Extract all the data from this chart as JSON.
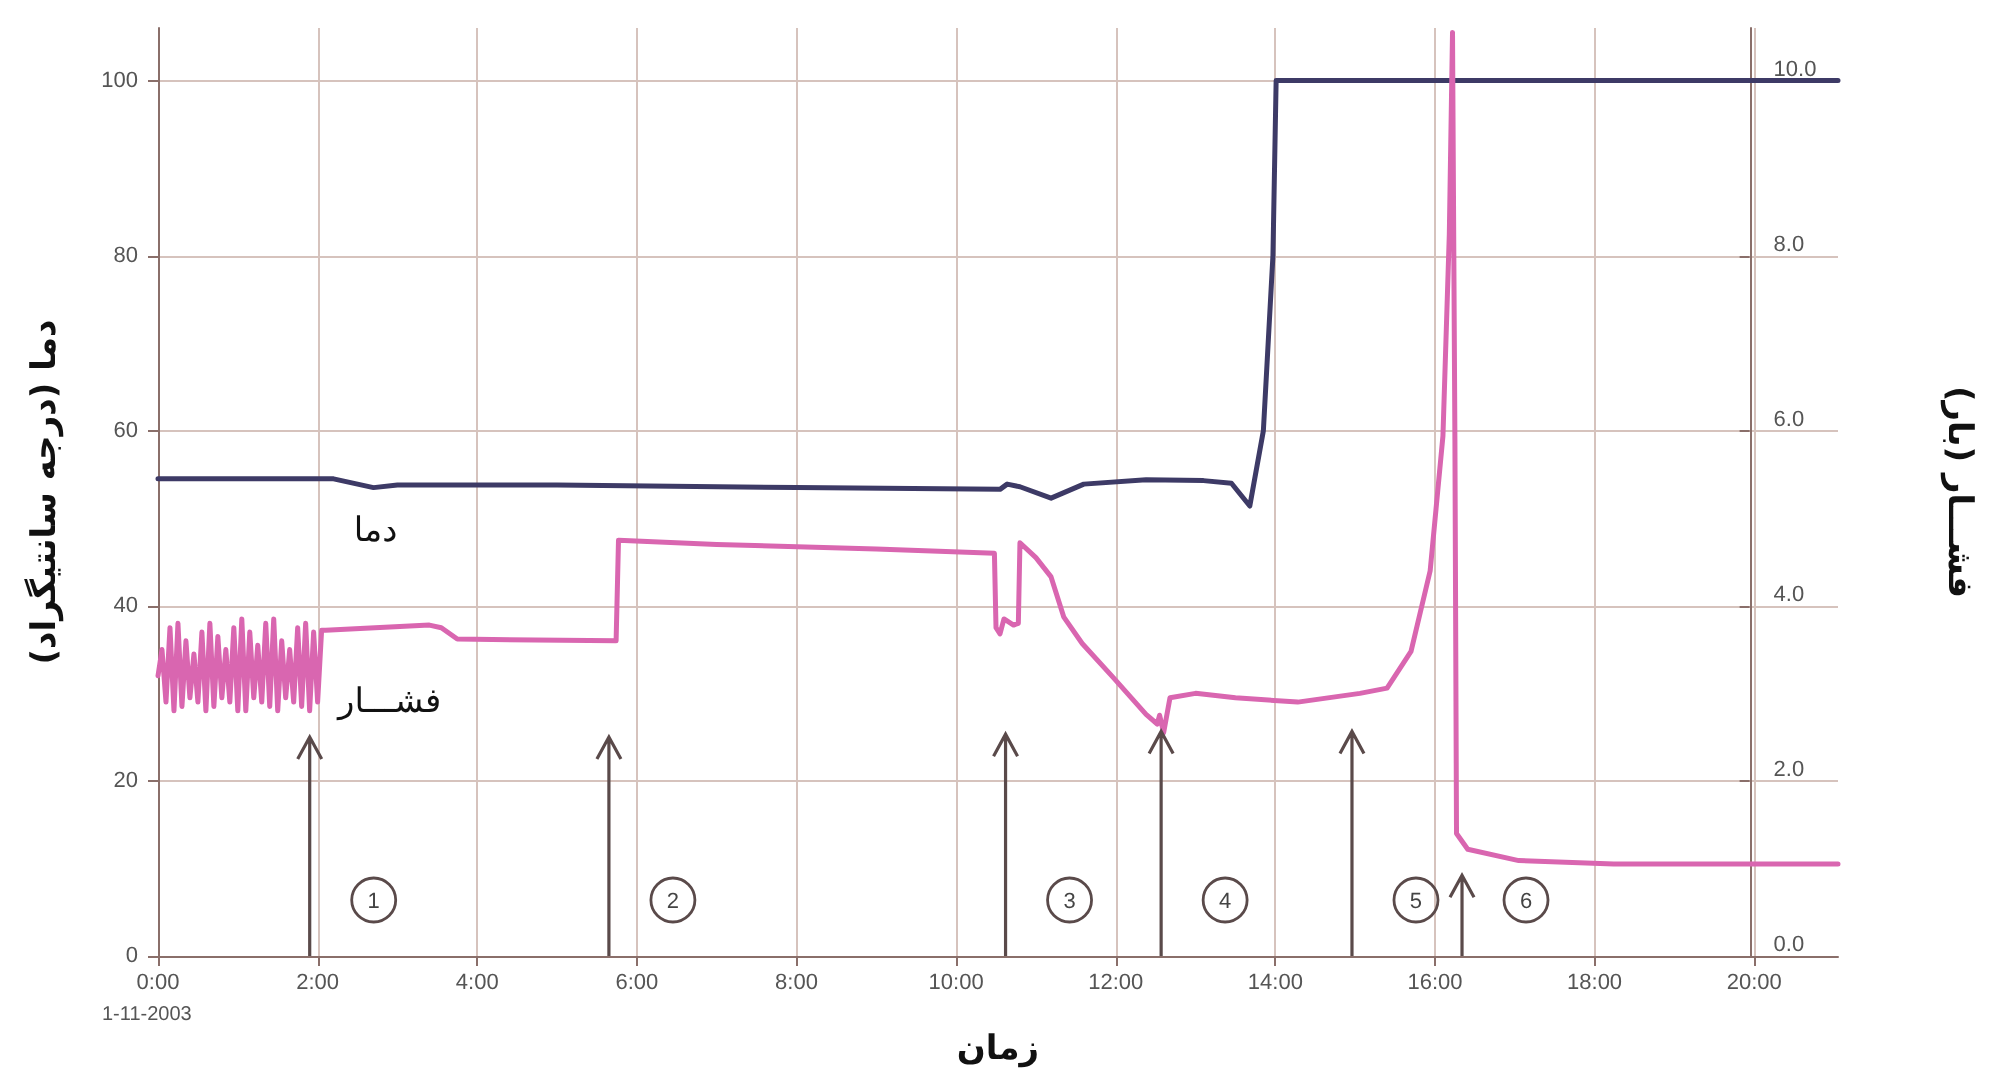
{
  "chart_data": {
    "type": "line",
    "xlabel": "زمان",
    "ylabel": "دما (درجه سانتیگراد)",
    "y2label": "فشـــار (بار)",
    "xlim": [
      0,
      21.05
    ],
    "xticks": [
      {
        "value": 0,
        "label": "0:00"
      },
      {
        "value": 2,
        "label": "2:00"
      },
      {
        "value": 4,
        "label": "4:00"
      },
      {
        "value": 6,
        "label": "6:00"
      },
      {
        "value": 8,
        "label": "8:00"
      },
      {
        "value": 10,
        "label": "10:00"
      },
      {
        "value": 12,
        "label": "12:00"
      },
      {
        "value": 14,
        "label": "14:00"
      },
      {
        "value": 16,
        "label": "16:00"
      },
      {
        "value": 18,
        "label": "18:00"
      },
      {
        "value": 20,
        "label": "20:00"
      }
    ],
    "ylim": [
      0,
      106
    ],
    "yticks": [
      0,
      20,
      40,
      60,
      80,
      100
    ],
    "y2lim": [
      0,
      10.6
    ],
    "y2ticks": [
      {
        "value": 0,
        "label": "0.0"
      },
      {
        "value": 2,
        "label": "2.0"
      },
      {
        "value": 4,
        "label": "4.0"
      },
      {
        "value": 6,
        "label": "6.0"
      },
      {
        "value": 8,
        "label": "8.0"
      },
      {
        "value": 10,
        "label": "10.0"
      }
    ],
    "grid": true,
    "marker": "none",
    "line_style": "solid",
    "legend": false,
    "series": [
      {
        "name": "دما",
        "color": "#3d3a66",
        "x": [
          0,
          2.2,
          2.7,
          3.0,
          5,
          8,
          10.55,
          10.64,
          10.8,
          11.19,
          11.6,
          12.38,
          13.1,
          13.45,
          13.68,
          13.85,
          13.97,
          14.01,
          21.05
        ],
        "values": [
          54.5,
          54.5,
          53.5,
          53.8,
          53.8,
          53.5,
          53.3,
          53.9,
          53.6,
          52.3,
          53.9,
          54.4,
          54.3,
          54.0,
          51.4,
          60,
          80,
          100,
          100
        ]
      },
      {
        "name": "فشـــار",
        "color": "#d966b0",
        "axis": "y2",
        "x": [
          0,
          0.05,
          0.1,
          0.15,
          0.2,
          0.25,
          0.3,
          0.35,
          0.4,
          0.45,
          0.5,
          0.55,
          0.6,
          0.65,
          0.7,
          0.75,
          0.8,
          0.85,
          0.9,
          0.95,
          1.0,
          1.05,
          1.1,
          1.15,
          1.2,
          1.25,
          1.3,
          1.35,
          1.4,
          1.45,
          1.5,
          1.55,
          1.6,
          1.65,
          1.7,
          1.75,
          1.8,
          1.85,
          1.9,
          1.95,
          2.0,
          2.05,
          2.1,
          3.4,
          3.55,
          3.75,
          5.74,
          5.77,
          7,
          9,
          10.48,
          10.5,
          10.55,
          10.6,
          10.72,
          10.78,
          10.8,
          11.0,
          11.19,
          11.35,
          11.58,
          11.97,
          12.38,
          12.52,
          12.55,
          12.6,
          12.68,
          13.0,
          13.5,
          14.28,
          15.06,
          15.4,
          15.7,
          15.94,
          16.1,
          16.18,
          16.22,
          16.25,
          16.27,
          16.41,
          17.05,
          18.24,
          21.05
        ],
        "values": [
          3.2,
          3.5,
          2.9,
          3.75,
          2.8,
          3.8,
          2.85,
          3.6,
          2.95,
          3.45,
          2.9,
          3.7,
          2.8,
          3.8,
          2.85,
          3.65,
          2.95,
          3.5,
          2.9,
          3.75,
          2.8,
          3.85,
          2.8,
          3.7,
          2.95,
          3.55,
          2.9,
          3.8,
          2.85,
          3.85,
          2.8,
          3.6,
          2.95,
          3.5,
          2.9,
          3.75,
          2.85,
          3.8,
          2.8,
          3.7,
          2.9,
          3.72,
          3.72,
          3.78,
          3.75,
          3.62,
          3.6,
          4.75,
          4.7,
          4.65,
          4.6,
          3.75,
          3.68,
          3.85,
          3.78,
          3.8,
          4.72,
          4.55,
          4.33,
          3.87,
          3.57,
          3.18,
          2.76,
          2.65,
          2.75,
          2.55,
          2.95,
          3.0,
          2.95,
          2.9,
          3.0,
          3.06,
          3.48,
          4.4,
          5.94,
          8.25,
          10.55,
          5.9,
          1.4,
          1.22,
          1.09,
          1.05,
          1.05
        ]
      }
    ],
    "annotations": [
      "1",
      "2",
      "3",
      "4",
      "5",
      "6",
      "1-11-2003"
    ]
  }
}
